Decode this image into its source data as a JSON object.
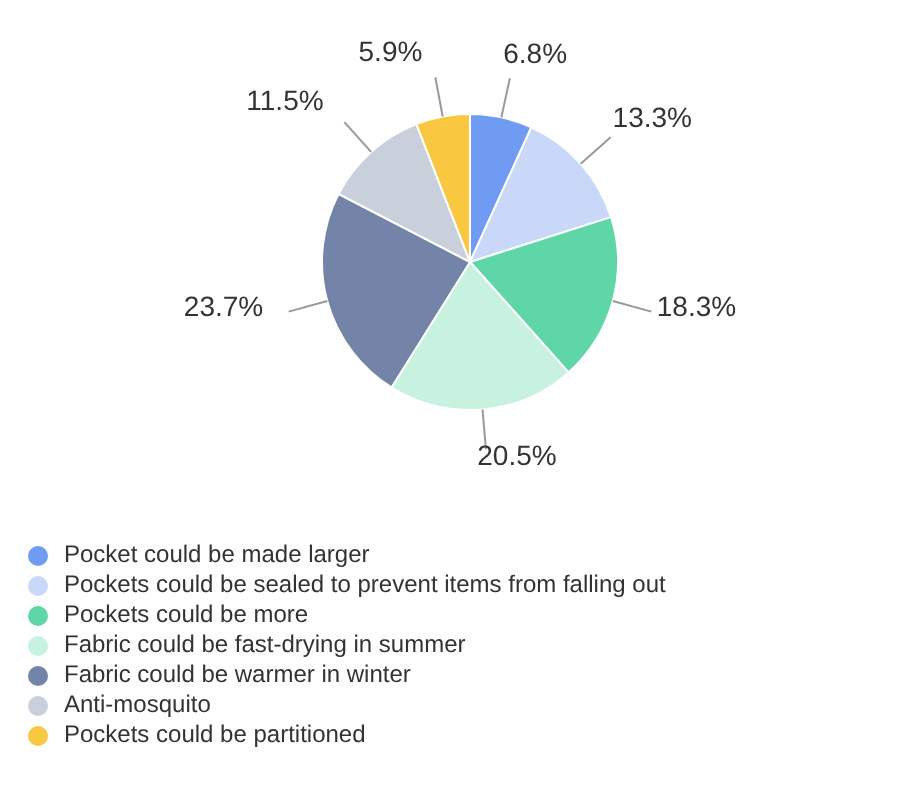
{
  "chart_data": {
    "type": "pie",
    "categories": [
      "Pocket could be made larger",
      "Pockets could be sealed to prevent items from falling out",
      "Pockets could be more",
      "Fabric could be fast-drying in summer",
      "Fabric could be warmer in winter",
      "Anti-mosquito",
      "Pockets could be partitioned"
    ],
    "values": [
      6.8,
      13.3,
      18.3,
      20.5,
      23.7,
      11.5,
      5.9
    ],
    "value_labels": [
      "6.8%",
      "13.3%",
      "18.3%",
      "20.5%",
      "23.7%",
      "11.5%",
      "5.9%"
    ],
    "colors": [
      "#6f9cf2",
      "#c9d8f9",
      "#5fd6a8",
      "#c8f2e0",
      "#7384a8",
      "#c9d0dc",
      "#f9c840"
    ],
    "legend": "bottom"
  }
}
